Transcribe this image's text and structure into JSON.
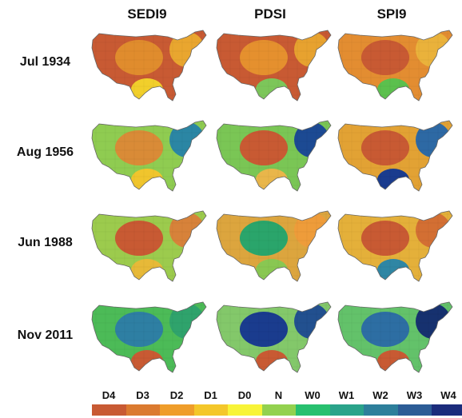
{
  "columns": [
    "SEDI9",
    "PDSI",
    "SPI9"
  ],
  "rows": [
    {
      "label": "Jul 1934",
      "maps": [
        {
          "base": "#c85a33",
          "patch": "#e08c2d",
          "east": "#e9a62f",
          "accent": "#f1cf2b"
        },
        {
          "base": "#c85a33",
          "patch": "#e5902e",
          "east": "#e7a22f",
          "accent": "#7cc65a"
        },
        {
          "base": "#e38d31",
          "patch": "#c85a33",
          "east": "#eab23b",
          "accent": "#5bc04d"
        }
      ]
    },
    {
      "label": "Aug 1956",
      "maps": [
        {
          "base": "#8fcc51",
          "patch": "#d98b37",
          "east": "#2b86a4",
          "accent": "#f0c52d"
        },
        {
          "base": "#7ac655",
          "patch": "#c85a33",
          "east": "#1c4a93",
          "accent": "#e9b64a"
        },
        {
          "base": "#e2a234",
          "patch": "#c85a33",
          "east": "#2d69a4",
          "accent": "#1a3c8e"
        }
      ]
    },
    {
      "label": "Jun 1988",
      "maps": [
        {
          "base": "#9ccb4d",
          "patch": "#c85a33",
          "east": "#d7823a",
          "accent": "#e7b938"
        },
        {
          "base": "#dca53e",
          "patch": "#2aa56b",
          "east": "#ee9c3a",
          "accent": "#89c752"
        },
        {
          "base": "#e4b03a",
          "patch": "#c85a33",
          "east": "#d36f33",
          "accent": "#2f86a4"
        }
      ]
    },
    {
      "label": "Nov 2011",
      "maps": [
        {
          "base": "#4cbb57",
          "patch": "#2e7fa3",
          "east": "#2fa36c",
          "accent": "#c85a33"
        },
        {
          "base": "#83c86a",
          "patch": "#1a3c8e",
          "east": "#22508f",
          "accent": "#c85a33"
        },
        {
          "base": "#63c26a",
          "patch": "#2d6ea3",
          "east": "#16316f",
          "accent": "#c85a33"
        }
      ]
    }
  ],
  "legend": {
    "labels": [
      "D4",
      "D3",
      "D2",
      "D1",
      "D0",
      "N",
      "W0",
      "W1",
      "W2",
      "W3",
      "W4"
    ],
    "colors": [
      "#c85a33",
      "#db7a2f",
      "#ef9d2a",
      "#f4c72a",
      "#f8f438",
      "#93d14f",
      "#28c06f",
      "#2aa38a",
      "#2d7f9b",
      "#2c5c96",
      "#1b2c7c"
    ]
  }
}
